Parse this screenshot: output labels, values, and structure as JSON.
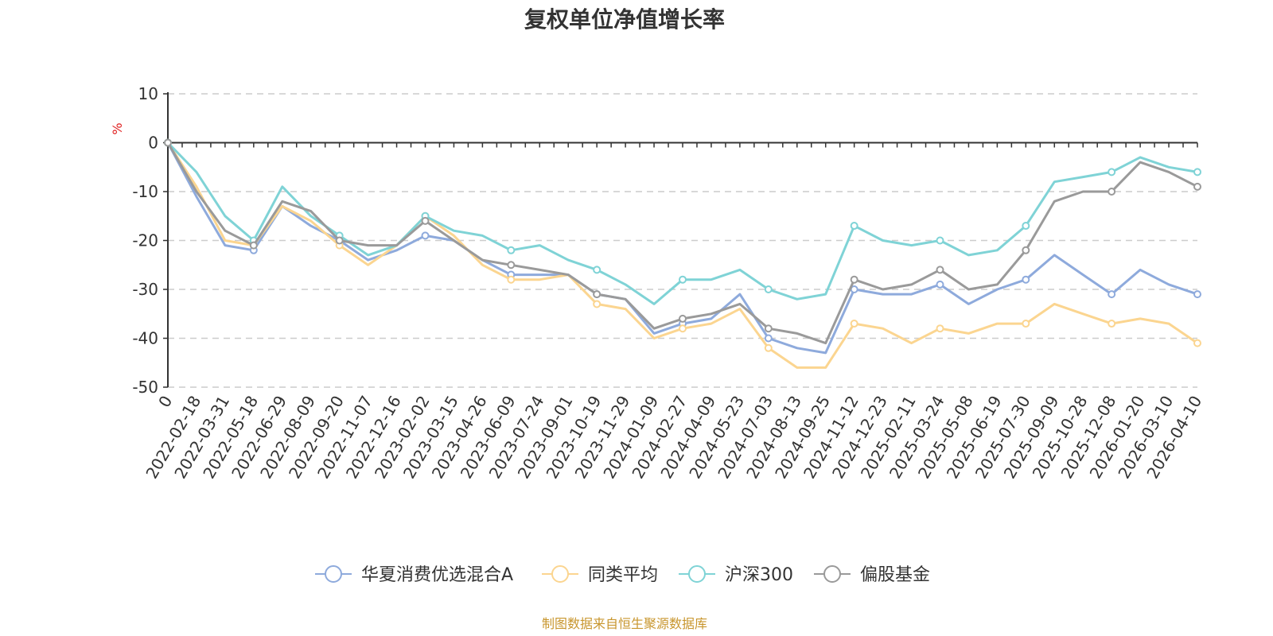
{
  "chart_data": {
    "type": "line",
    "title": "复权单位净值增长率",
    "ylabel": "%",
    "xlabel": "",
    "ylim": [
      -50,
      10
    ],
    "yticks": [
      10,
      0,
      -10,
      -20,
      -30,
      -40,
      -50
    ],
    "categories": [
      "0",
      "2022-02-18",
      "2022-03-31",
      "2022-05-18",
      "2022-06-29",
      "2022-08-09",
      "2022-09-20",
      "2022-11-07",
      "2022-12-16",
      "2023-02-02",
      "2023-03-15",
      "2023-04-26",
      "2023-06-09",
      "2023-07-24",
      "2023-09-01",
      "2023-10-19",
      "2023-11-29",
      "2024-01-09",
      "2024-02-27",
      "2024-04-09",
      "2024-05-23",
      "2024-07-03",
      "2024-08-13",
      "2024-09-25",
      "2024-11-12",
      "2024-12-23",
      "2025-02-11",
      "2025-03-24",
      "2025-05-08",
      "2025-06-19",
      "2025-07-30",
      "2025-09-09",
      "2025-10-28",
      "2025-12-08",
      "2026-01-20",
      "2026-03-10",
      "2026-04-10"
    ],
    "grid": true,
    "legend": "bottom-center",
    "source": "制图数据来自恒生聚源数据库",
    "series": [
      {
        "name": "华夏消费优选混合A",
        "color": "#8eaadc",
        "values": [
          0,
          -11,
          -21,
          -22,
          -13,
          -17,
          -20,
          -24,
          -22,
          -19,
          -20,
          -24,
          -27,
          -27,
          -27,
          -31,
          -32,
          -39,
          -37,
          -36,
          -31,
          -40,
          -42,
          -43,
          -30,
          -31,
          -31,
          -29,
          -33,
          -30,
          -28,
          -23,
          -27,
          -31,
          -26,
          -29,
          -31
        ]
      },
      {
        "name": "同类平均",
        "color": "#fbd590",
        "values": [
          0,
          -9,
          -20,
          -21,
          -13,
          -16,
          -21,
          -25,
          -21,
          -15,
          -19,
          -25,
          -28,
          -28,
          -27,
          -33,
          -34,
          -40,
          -38,
          -37,
          -34,
          -42,
          -46,
          -46,
          -37,
          -38,
          -41,
          -38,
          -39,
          -37,
          -37,
          -33,
          -35,
          -37,
          -36,
          -37,
          -41
        ]
      },
      {
        "name": "沪深300",
        "color": "#7fd3d6",
        "values": [
          0,
          -6,
          -15,
          -20,
          -9,
          -15,
          -19,
          -23,
          -21,
          -15,
          -18,
          -19,
          -22,
          -21,
          -24,
          -26,
          -29,
          -33,
          -28,
          -28,
          -26,
          -30,
          -32,
          -31,
          -17,
          -20,
          -21,
          -20,
          -23,
          -22,
          -17,
          -8,
          -7,
          -6,
          -3,
          -5,
          -6
        ]
      },
      {
        "name": "偏股基金",
        "color": "#9a9a9a",
        "values": [
          0,
          -10,
          -18,
          -21,
          -12,
          -14,
          -20,
          -21,
          -21,
          -16,
          -20,
          -24,
          -25,
          -26,
          -27,
          -31,
          -32,
          -38,
          -36,
          -35,
          -33,
          -38,
          -39,
          -41,
          -28,
          -30,
          -29,
          -26,
          -30,
          -29,
          -22,
          -12,
          -10,
          -10,
          -4,
          -6,
          -9
        ]
      }
    ]
  }
}
